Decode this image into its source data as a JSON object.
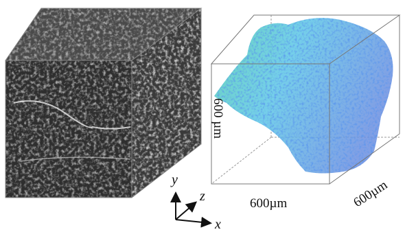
{
  "labels": {
    "height": "600 µm",
    "width": "600µm",
    "depth": "600µm"
  },
  "axes": {
    "y": "y",
    "z": "z",
    "x": "x"
  }
}
